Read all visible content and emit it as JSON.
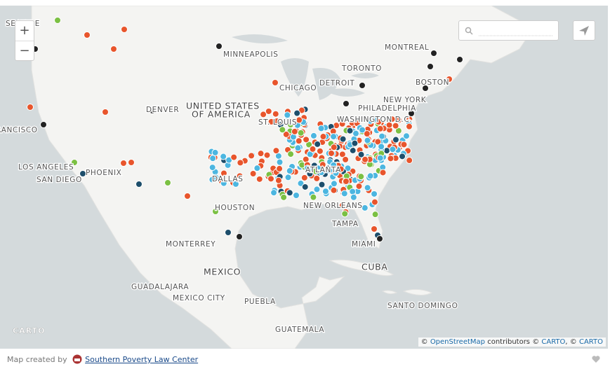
{
  "map": {
    "labels": [
      "SEATTLE",
      "MINNEAPOLIS",
      "MONTREAL",
      "TORONTO",
      "DETROIT",
      "CHICAGO",
      "BOSTON",
      "NEW YORK",
      "PHILADELPHIA",
      "WASHINGTON D.C.",
      "DENVER",
      "UNITED STATES",
      "OF AMERICA",
      "ST. LOUIS",
      "SAN FRANCISCO",
      "LOS ANGELES",
      "SAN DIEGO",
      "PHOENIX",
      "DALLAS",
      "ATLANTA",
      "HOUSTON",
      "NEW ORLEANS",
      "TAMPA",
      "MIAMI",
      "MONTERREY",
      "MEXICO",
      "CUBA",
      "GUADALAJARA",
      "MEXICO CITY",
      "PUEBLA",
      "SANTO DOMINGO",
      "GUATEMALA"
    ],
    "zoom_in": "+",
    "zoom_out": "−",
    "logo": "CARTO",
    "attribution": [
      "©",
      "OpenStreetMap",
      "contributors ©",
      "CARTO",
      ", ©",
      "CARTO"
    ]
  },
  "footer": {
    "credit": "Map created by",
    "org": "Southern Poverty Law Center"
  }
}
